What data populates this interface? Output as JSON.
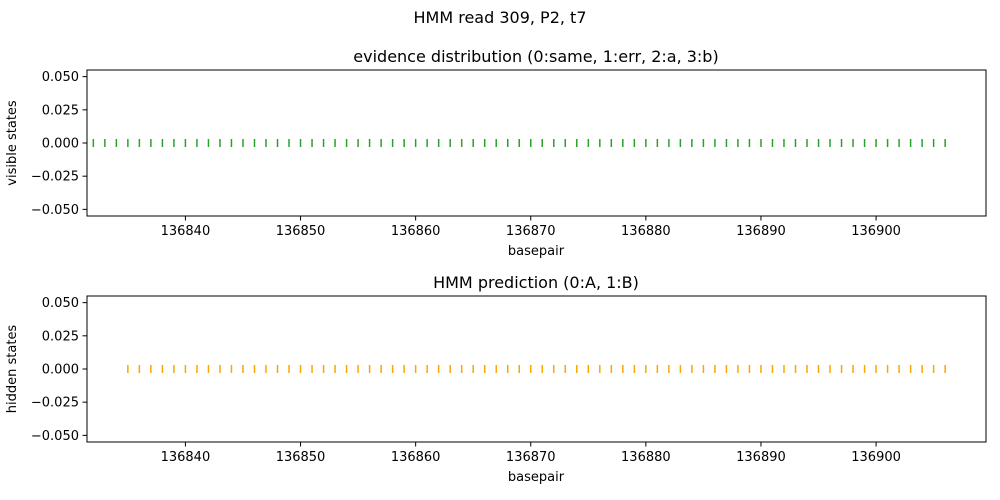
{
  "figure": {
    "suptitle": "HMM read 309, P2, t7"
  },
  "chart_data": [
    {
      "type": "scatter",
      "marker": "vertical-tick",
      "title": "evidence distribution (0:same, 1:err, 2:a, 3:b)",
      "xlabel": "basepair",
      "ylabel": "visible states",
      "x_range": [
        135835,
        136906
      ],
      "x_step": 1,
      "y_value": 0,
      "xlim": [
        136831.45,
        136909.55
      ],
      "ylim": [
        -0.055,
        0.055
      ],
      "xticks": [
        136840,
        136850,
        136860,
        136870,
        136880,
        136890,
        136900
      ],
      "xtick_labels": [
        "136840",
        "136850",
        "136860",
        "136870",
        "136880",
        "136890",
        "136900"
      ],
      "yticks": [
        0.05,
        0.025,
        0.0,
        -0.025,
        -0.05
      ],
      "ytick_labels": [
        "0.050",
        "0.025",
        "0.000",
        "−0.025",
        "−0.050"
      ],
      "color": "#2ca02c",
      "grid": false
    },
    {
      "type": "scatter",
      "marker": "vertical-tick",
      "title": "HMM prediction (0:A, 1:B)",
      "xlabel": "basepair",
      "ylabel": "hidden states",
      "x_range": [
        136835,
        136906
      ],
      "x_step": 1,
      "y_value": 0,
      "xlim": [
        136831.45,
        136909.55
      ],
      "ylim": [
        -0.055,
        0.055
      ],
      "xticks": [
        136840,
        136850,
        136860,
        136870,
        136880,
        136890,
        136900
      ],
      "xtick_labels": [
        "136840",
        "136850",
        "136860",
        "136870",
        "136880",
        "136890",
        "136900"
      ],
      "yticks": [
        0.05,
        0.025,
        0.0,
        -0.025,
        -0.05
      ],
      "ytick_labels": [
        "0.050",
        "0.025",
        "0.000",
        "−0.025",
        "−0.050"
      ],
      "color": "#ffa500",
      "grid": false
    }
  ]
}
